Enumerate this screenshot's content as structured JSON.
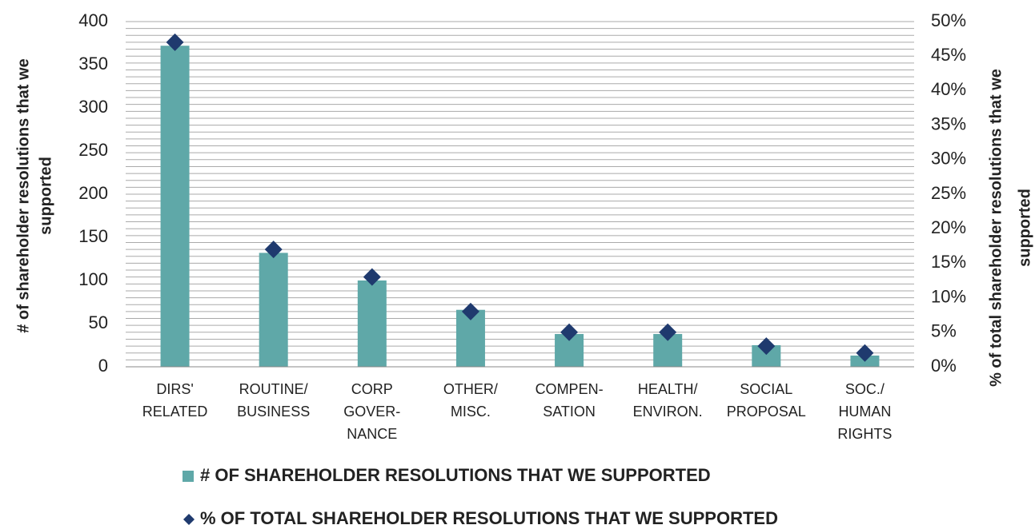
{
  "chart_data": {
    "type": "bar_line",
    "categories": [
      [
        "DIRS'",
        "RELATED"
      ],
      [
        "ROUTINE/",
        "BUSINESS"
      ],
      [
        "CORP",
        "GOVER-",
        "NANCE"
      ],
      [
        "OTHER/",
        "MISC."
      ],
      [
        "COMPEN-",
        "SATION"
      ],
      [
        "HEALTH/",
        "ENVIRON."
      ],
      [
        "SOCIAL",
        "PROPOSAL"
      ],
      [
        "SOC./",
        "HUMAN",
        "RIGHTS"
      ]
    ],
    "series": [
      {
        "name": "# OF SHAREHOLDER RESOLUTIONS THAT WE SUPPORTED",
        "color": "#5fa8a8",
        "values": [
          372,
          132,
          100,
          66,
          38,
          38,
          25,
          13
        ]
      },
      {
        "name": "% OF TOTAL SHAREHOLDER RESOLUTIONS THAT WE SUPPORTED",
        "color": "#1f3a6e",
        "axis": "y2",
        "values": [
          47,
          17,
          13,
          8,
          5,
          5,
          3,
          2
        ]
      }
    ],
    "ylabel": [
      "# of shareholder resolutions that we",
      "supported"
    ],
    "y2label": [
      "% of total shareholder resolutions that we",
      "supported"
    ],
    "ylim": [
      0,
      400
    ],
    "yticks": [
      0,
      50,
      100,
      150,
      200,
      250,
      300,
      350,
      400
    ],
    "y2lim": [
      0,
      50
    ],
    "y2ticks": [
      {
        "value": 0,
        "label": "0%"
      },
      {
        "value": 5,
        "label": "5%"
      },
      {
        "value": 10,
        "label": "10%"
      },
      {
        "value": 15,
        "label": "15%"
      },
      {
        "value": 20,
        "label": "20%"
      },
      {
        "value": 25,
        "label": "25%"
      },
      {
        "value": 30,
        "label": "30%"
      },
      {
        "value": 35,
        "label": "35%"
      },
      {
        "value": 40,
        "label": "40%"
      },
      {
        "value": 45,
        "label": "45%"
      },
      {
        "value": 50,
        "label": "50%"
      }
    ],
    "y2grid": [
      0,
      1,
      2,
      3,
      4,
      5,
      6,
      7,
      8,
      9,
      10,
      11,
      12,
      13,
      14,
      15,
      16,
      17,
      18,
      19,
      20,
      21,
      22,
      23,
      24,
      25,
      26,
      27,
      28,
      29,
      30,
      31,
      32,
      33,
      34,
      35,
      36,
      37,
      38,
      39,
      40,
      41,
      42,
      43,
      44,
      45,
      46,
      47,
      48,
      49,
      50
    ],
    "legend": "bottom"
  }
}
